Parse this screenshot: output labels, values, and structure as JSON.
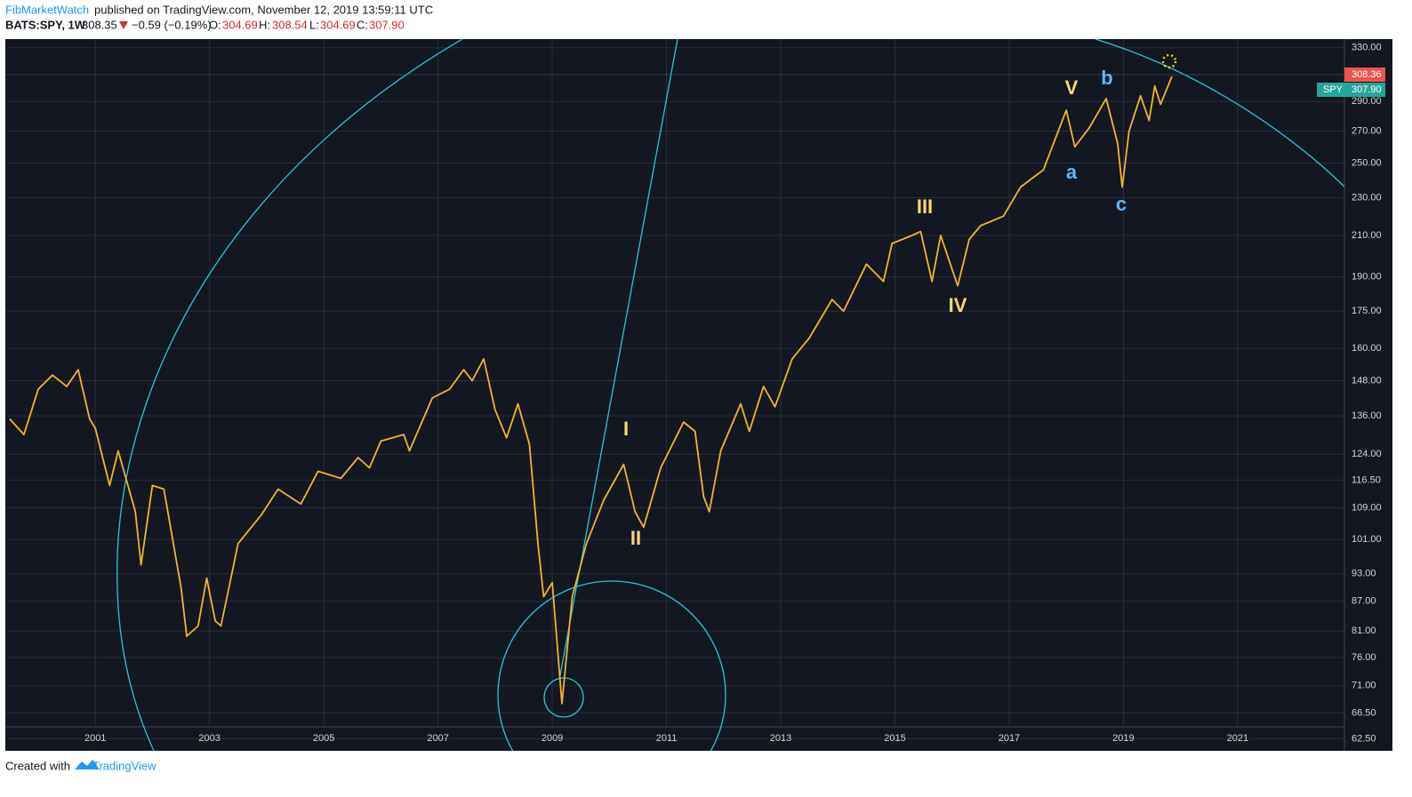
{
  "header": {
    "author": "FibMarketWatch",
    "published": "published on TradingView.com, November 12, 2019 13:59:11 UTC",
    "symbol": "BATS:SPY, 1W",
    "price": "308.35",
    "change": "−0.59 (−0.19%)",
    "open_label": "O:",
    "open": "304.69",
    "high_label": "H:",
    "high": "308.54",
    "low_label": "L:",
    "low": "304.69",
    "close_label": "C:",
    "close": "307.90"
  },
  "price_tags": {
    "high_tag": "308.36",
    "close_tag": "307.90"
  },
  "waves": [
    "I",
    "II",
    "III",
    "IV",
    "V",
    "a",
    "b",
    "c"
  ],
  "footer": {
    "created": "Created with",
    "brand": "TradingView"
  },
  "chart_data": {
    "type": "line",
    "log_scale": true,
    "grid": true,
    "x": [
      1999.5,
      1999.75,
      2000.0,
      2000.25,
      2000.5,
      2000.7,
      2000.9,
      2001.0,
      2001.25,
      2001.4,
      2001.7,
      2001.8,
      2002.0,
      2002.2,
      2002.5,
      2002.6,
      2002.8,
      2002.95,
      2003.1,
      2003.2,
      2003.5,
      2003.9,
      2004.2,
      2004.6,
      2004.9,
      2005.3,
      2005.6,
      2005.8,
      2006.0,
      2006.4,
      2006.5,
      2006.9,
      2007.2,
      2007.45,
      2007.6,
      2007.8,
      2008.0,
      2008.2,
      2008.4,
      2008.6,
      2008.75,
      2008.85,
      2009.0,
      2009.17,
      2009.35,
      2009.6,
      2009.9,
      2010.25,
      2010.45,
      2010.6,
      2010.9,
      2011.3,
      2011.5,
      2011.65,
      2011.75,
      2011.95,
      2012.3,
      2012.45,
      2012.7,
      2012.9,
      2013.2,
      2013.5,
      2013.9,
      2014.1,
      2014.5,
      2014.8,
      2014.95,
      2015.3,
      2015.45,
      2015.65,
      2015.8,
      2016.1,
      2016.3,
      2016.5,
      2016.9,
      2017.2,
      2017.6,
      2018.0,
      2018.15,
      2018.4,
      2018.7,
      2018.9,
      2018.98,
      2019.1,
      2019.3,
      2019.45,
      2019.55,
      2019.65,
      2019.85
    ],
    "series": [
      {
        "name": "SPY",
        "color": "#f0b429",
        "values": [
          135,
          130,
          145,
          150,
          146,
          152,
          135,
          132,
          115,
          125,
          108,
          95,
          115,
          114,
          90,
          80,
          82,
          92,
          83,
          82,
          100,
          107,
          114,
          110,
          119,
          117,
          123,
          120,
          128,
          130,
          125,
          142,
          145,
          152,
          148,
          156,
          138,
          129,
          140,
          127,
          100,
          88,
          91,
          68,
          88,
          100,
          111,
          121,
          108,
          104,
          120,
          134,
          131,
          112,
          108,
          125,
          140,
          131,
          146,
          139,
          156,
          164,
          180,
          175,
          196,
          188,
          206,
          210,
          212,
          188,
          210,
          186,
          208,
          215,
          220,
          236,
          246,
          284,
          260,
          272,
          292,
          262,
          236,
          270,
          294,
          277,
          301,
          288,
          308
        ]
      }
    ],
    "xlim": [
      1999.44,
      2022.87
    ],
    "xticks": [
      2001,
      2003,
      2005,
      2007,
      2009,
      2011,
      2013,
      2015,
      2017,
      2019,
      2021
    ],
    "ylim": [
      60.7,
      337
    ],
    "yticks": [
      {
        "value": 330,
        "label": "330.00"
      },
      {
        "value": 290,
        "label": "290.00"
      },
      {
        "value": 270,
        "label": "270.00"
      },
      {
        "value": 250,
        "label": "250.00"
      },
      {
        "value": 230,
        "label": "230.00"
      },
      {
        "value": 210,
        "label": "210.00"
      },
      {
        "value": 190,
        "label": "190.00"
      },
      {
        "value": 175,
        "label": "175.00"
      },
      {
        "value": 160,
        "label": "160.00"
      },
      {
        "value": 148,
        "label": "148.00"
      },
      {
        "value": 136,
        "label": "136.00"
      },
      {
        "value": 124,
        "label": "124.00"
      },
      {
        "value": 116.5,
        "label": "116.50"
      },
      {
        "value": 109,
        "label": "109.00"
      },
      {
        "value": 101,
        "label": "101.00"
      },
      {
        "value": 93,
        "label": "93.00"
      },
      {
        "value": 87,
        "label": "87.00"
      },
      {
        "value": 81,
        "label": "81.00"
      },
      {
        "value": 76,
        "label": "76.00"
      },
      {
        "value": 71,
        "label": "71.00"
      },
      {
        "value": 66.5,
        "label": "66.50"
      },
      {
        "value": 62.5,
        "label": "62.50"
      }
    ]
  }
}
